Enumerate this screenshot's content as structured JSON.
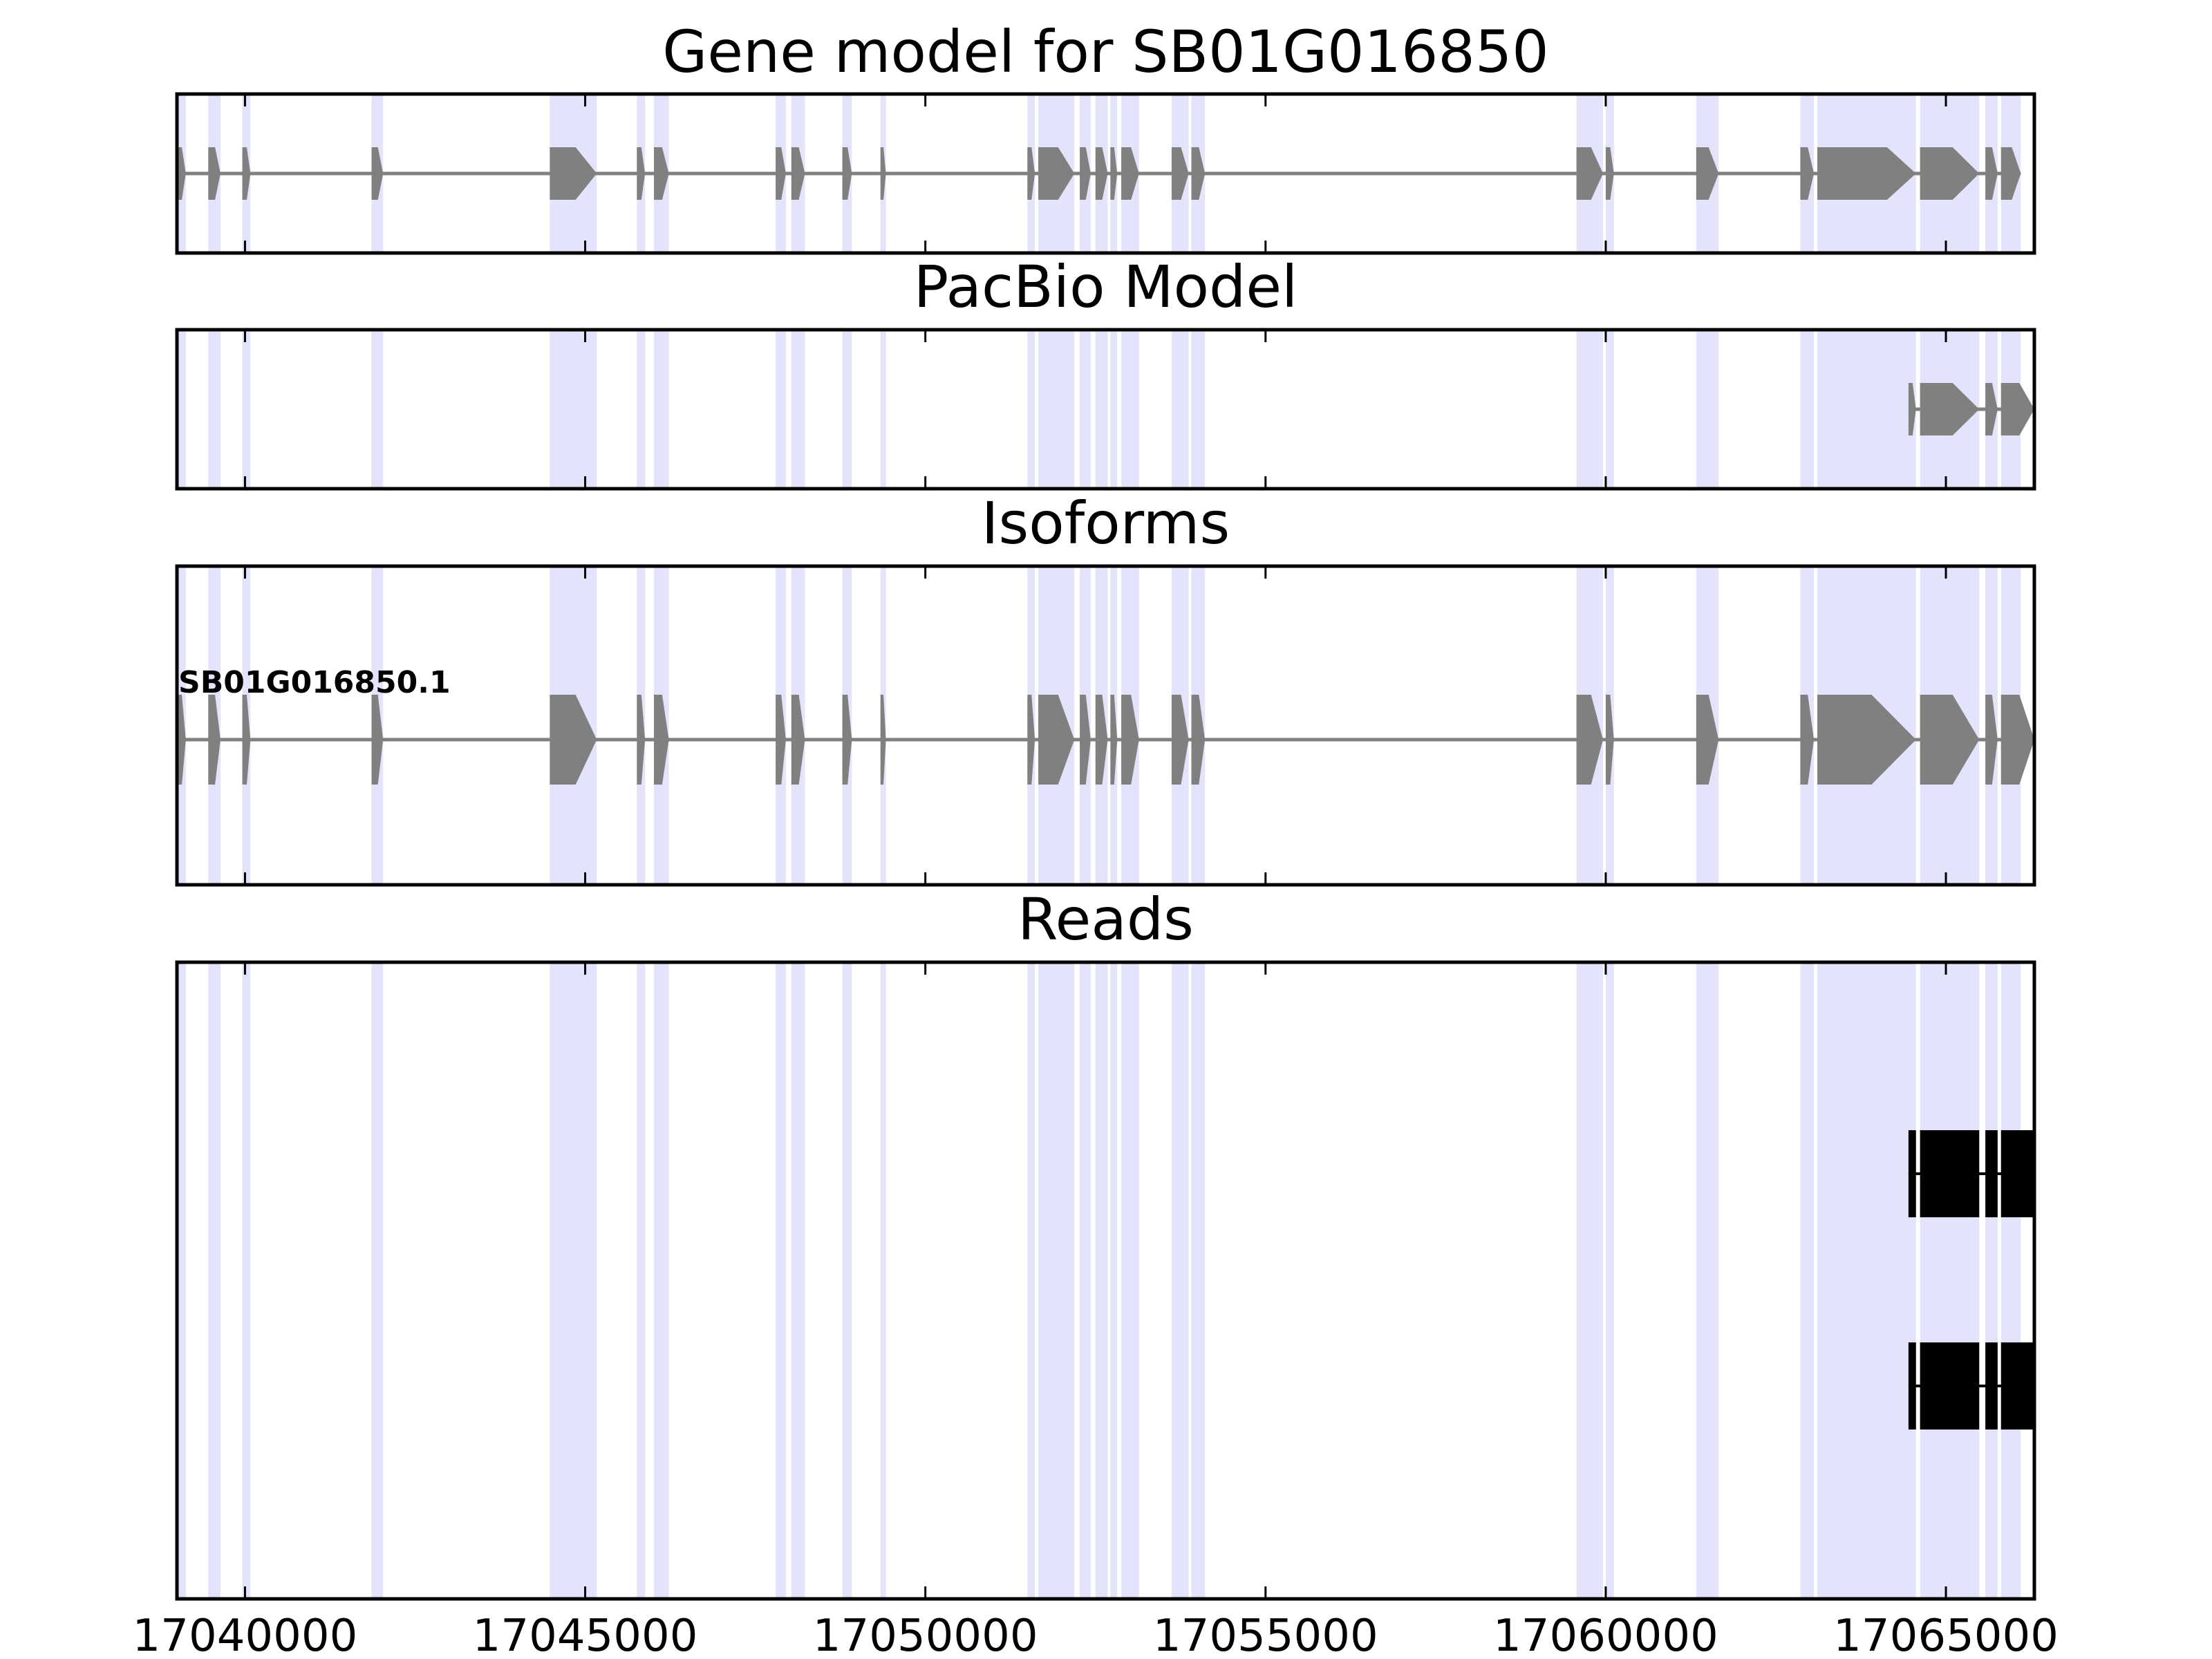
{
  "chart_data": {
    "type": "gene-model",
    "xlim": [
      17039000,
      17066300
    ],
    "tick_values": [
      17040000,
      17045000,
      17050000,
      17055000,
      17060000,
      17065000
    ],
    "tick_labels": [
      "17040000",
      "17045000",
      "17050000",
      "17055000",
      "17060000",
      "17065000"
    ],
    "colors": {
      "feature": "#808080",
      "read": "#000000",
      "exon_highlight": "#e3e3fb",
      "frame": "#000000"
    },
    "exon_regions": [
      [
        17039000,
        17039130
      ],
      [
        17039460,
        17039640
      ],
      [
        17039960,
        17040080
      ],
      [
        17041860,
        17042030
      ],
      [
        17044480,
        17045170
      ],
      [
        17045760,
        17045880
      ],
      [
        17046010,
        17046230
      ],
      [
        17047800,
        17047950
      ],
      [
        17048030,
        17048230
      ],
      [
        17048780,
        17048920
      ],
      [
        17049340,
        17049420
      ],
      [
        17051500,
        17051610
      ],
      [
        17051660,
        17052190
      ],
      [
        17052270,
        17052430
      ],
      [
        17052500,
        17052680
      ],
      [
        17052720,
        17052820
      ],
      [
        17052880,
        17053140
      ],
      [
        17053620,
        17053870
      ],
      [
        17053910,
        17054110
      ],
      [
        17059570,
        17059960
      ],
      [
        17060000,
        17060120
      ],
      [
        17061330,
        17061660
      ],
      [
        17062860,
        17063060
      ],
      [
        17063110,
        17064560
      ],
      [
        17064620,
        17065490
      ],
      [
        17065580,
        17065760
      ],
      [
        17065810,
        17066100
      ]
    ],
    "panels": [
      {
        "title": "Gene model for SB01G016850",
        "strand": "+",
        "exons": [
          [
            17039000,
            17039130
          ],
          [
            17039460,
            17039640
          ],
          [
            17039960,
            17040080
          ],
          [
            17041860,
            17042030
          ],
          [
            17044480,
            17045170
          ],
          [
            17045760,
            17045880
          ],
          [
            17046010,
            17046230
          ],
          [
            17047800,
            17047950
          ],
          [
            17048030,
            17048230
          ],
          [
            17048780,
            17048920
          ],
          [
            17049340,
            17049420
          ],
          [
            17051500,
            17051610
          ],
          [
            17051660,
            17052190
          ],
          [
            17052270,
            17052430
          ],
          [
            17052500,
            17052680
          ],
          [
            17052720,
            17052820
          ],
          [
            17052880,
            17053140
          ],
          [
            17053620,
            17053870
          ],
          [
            17053910,
            17054110
          ],
          [
            17059570,
            17059960
          ],
          [
            17060000,
            17060120
          ],
          [
            17061330,
            17061660
          ],
          [
            17062860,
            17063060
          ],
          [
            17063110,
            17064560
          ],
          [
            17064620,
            17065490
          ],
          [
            17065580,
            17065760
          ],
          [
            17065810,
            17066100
          ]
        ]
      },
      {
        "title": "PacBio Model",
        "strand": "+",
        "exons": [
          [
            17064450,
            17064560
          ],
          [
            17064620,
            17065490
          ],
          [
            17065580,
            17065760
          ],
          [
            17065810,
            17066300
          ]
        ]
      },
      {
        "title": "Isoforms",
        "strand": "+",
        "isoform_label": "SB01G016850.1",
        "exons": [
          [
            17039000,
            17039130
          ],
          [
            17039460,
            17039640
          ],
          [
            17039960,
            17040080
          ],
          [
            17041860,
            17042030
          ],
          [
            17044480,
            17045170
          ],
          [
            17045760,
            17045880
          ],
          [
            17046010,
            17046230
          ],
          [
            17047800,
            17047950
          ],
          [
            17048030,
            17048230
          ],
          [
            17048780,
            17048920
          ],
          [
            17049340,
            17049420
          ],
          [
            17051500,
            17051610
          ],
          [
            17051660,
            17052190
          ],
          [
            17052270,
            17052430
          ],
          [
            17052500,
            17052680
          ],
          [
            17052720,
            17052820
          ],
          [
            17052880,
            17053140
          ],
          [
            17053620,
            17053870
          ],
          [
            17053910,
            17054110
          ],
          [
            17059570,
            17059960
          ],
          [
            17060000,
            17060120
          ],
          [
            17061330,
            17061660
          ],
          [
            17062860,
            17063060
          ],
          [
            17063110,
            17064560
          ],
          [
            17064620,
            17065490
          ],
          [
            17065580,
            17065760
          ],
          [
            17065810,
            17066300
          ]
        ]
      },
      {
        "title": "Reads",
        "reads": [
          {
            "exons": [
              [
                17064450,
                17064560
              ],
              [
                17064620,
                17065490
              ],
              [
                17065580,
                17065760
              ],
              [
                17065810,
                17066300
              ]
            ]
          },
          {
            "exons": [
              [
                17064450,
                17064560
              ],
              [
                17064620,
                17065490
              ],
              [
                17065580,
                17065760
              ],
              [
                17065810,
                17066300
              ]
            ]
          }
        ]
      }
    ]
  }
}
